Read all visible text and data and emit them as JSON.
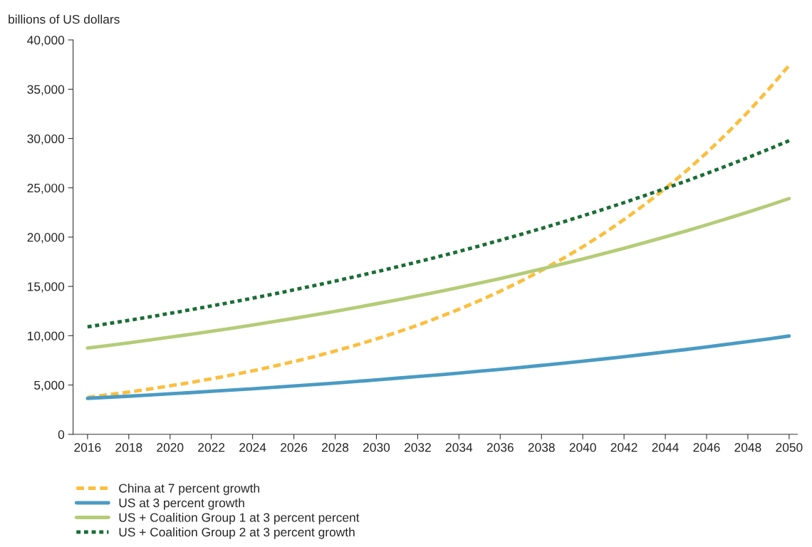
{
  "chart_data": {
    "type": "line",
    "ylabel": "billions of US dollars",
    "x": [
      2016,
      2017,
      2018,
      2019,
      2020,
      2021,
      2022,
      2023,
      2024,
      2025,
      2026,
      2027,
      2028,
      2029,
      2030,
      2031,
      2032,
      2033,
      2034,
      2035,
      2036,
      2037,
      2038,
      2039,
      2040,
      2041,
      2042,
      2043,
      2044,
      2045,
      2046,
      2047,
      2048,
      2049,
      2050
    ],
    "series": [
      {
        "name": "China at 7 percent growth",
        "color": "#fbbf3f",
        "line_style": "dashed",
        "values": [
          3750,
          4010,
          4290,
          4590,
          4920,
          5260,
          5630,
          6020,
          6440,
          6890,
          7380,
          7890,
          8450,
          9040,
          9670,
          10350,
          11070,
          11850,
          12680,
          13560,
          14510,
          15530,
          16620,
          17780,
          19020,
          20350,
          21780,
          23300,
          24930,
          26680,
          28550,
          30550,
          32680,
          34970,
          37420
        ]
      },
      {
        "name": "US at 3 percent growth",
        "color": "#4a9bc4",
        "line_style": "solid",
        "values": [
          3650,
          3760,
          3870,
          3990,
          4110,
          4230,
          4360,
          4490,
          4620,
          4760,
          4910,
          5050,
          5200,
          5360,
          5520,
          5690,
          5860,
          6030,
          6210,
          6400,
          6590,
          6790,
          6990,
          7200,
          7420,
          7640,
          7870,
          8110,
          8350,
          8600,
          8860,
          9130,
          9400,
          9680,
          9970
        ]
      },
      {
        "name": "US + Coalition Group 1 at 3 percent percent",
        "color": "#b5cc78",
        "line_style": "solid",
        "values": [
          8750,
          9010,
          9280,
          9560,
          9850,
          10140,
          10450,
          10760,
          11080,
          11420,
          11760,
          12110,
          12480,
          12850,
          13240,
          13630,
          14040,
          14460,
          14900,
          15340,
          15800,
          16280,
          16770,
          17270,
          17790,
          18320,
          18870,
          19440,
          20020,
          20620,
          21240,
          21880,
          22530,
          23210,
          23910
        ]
      },
      {
        "name": "US + Coalition Group 2 at 3 percent growth",
        "color": "#1a6e35",
        "line_style": "dotted",
        "values": [
          10900,
          11230,
          11560,
          11910,
          12270,
          12640,
          13020,
          13410,
          13810,
          14220,
          14650,
          15090,
          15540,
          16010,
          16490,
          16980,
          17490,
          18010,
          18550,
          19110,
          19690,
          20280,
          20880,
          21510,
          22160,
          22820,
          23500,
          24210,
          24940,
          25680,
          26450,
          27250,
          28060,
          28910,
          29780
        ]
      }
    ],
    "xlim": [
      2015.3,
      2050.4
    ],
    "xticks": [
      2016,
      2018,
      2020,
      2022,
      2024,
      2026,
      2028,
      2030,
      2032,
      2034,
      2036,
      2038,
      2040,
      2042,
      2044,
      2046,
      2048,
      2050
    ],
    "ylim": [
      0,
      40000
    ],
    "yticks": [
      0,
      {
        "value": 5000,
        "label": "5,000"
      },
      {
        "value": 10000,
        "label": "10,000"
      },
      {
        "value": 15000,
        "label": "15,000"
      },
      {
        "value": 20000,
        "label": "20,000"
      },
      {
        "value": 25000,
        "label": "25,000"
      },
      {
        "value": 30000,
        "label": "30,000"
      },
      {
        "value": 35000,
        "label": "35,000"
      },
      {
        "value": 40000,
        "label": "40,000"
      }
    ],
    "grid": false,
    "legend": "bottom"
  }
}
